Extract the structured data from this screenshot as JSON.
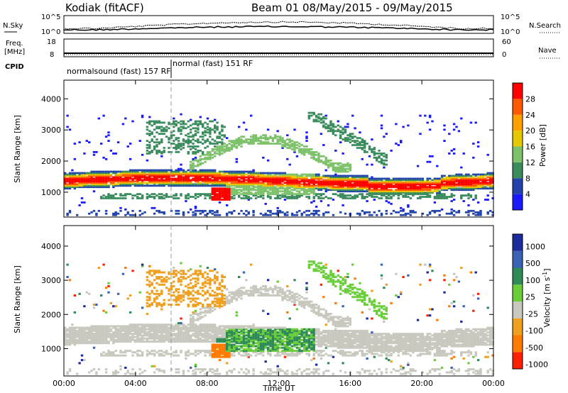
{
  "header": {
    "station": "Kodiak (fitACF)",
    "beam_info": "Beam 01  08/May/2015 - 09/May/2015"
  },
  "panels": {
    "nsky": {
      "label": "N.Sky",
      "right_label": "N.Search",
      "ticks_left": [
        "10^5",
        "10^0"
      ],
      "ticks_right": [
        "10^5",
        "10^0"
      ]
    },
    "freq": {
      "label": "Freq.",
      "unit": "[MHz]",
      "ticks_left": [
        "18",
        "8"
      ],
      "right_label": "Nave",
      "ticks_right": [
        "60",
        "0"
      ]
    },
    "cpid": {
      "label": "CPID",
      "mode1": "normalsound (fast) 157 RF",
      "mode2": "normal (fast) 151 RF"
    }
  },
  "colors": {
    "power_scale": [
      "#1a1aff",
      "#2244aa",
      "#3a8c5c",
      "#7dc26a",
      "#e6c800",
      "#ffa000",
      "#ff5a00",
      "#ff0000"
    ],
    "velocity_scale": [
      "#1b2a9c",
      "#3a62b5",
      "#2e8b57",
      "#6acd3a",
      "#c8c8be",
      "#f0a020",
      "#ff7a00",
      "#ff2000"
    ]
  },
  "chart_data": [
    {
      "type": "heatmap",
      "title": "",
      "xlabel": "",
      "ylabel": "Slant Range [km]",
      "x_ticks": [
        "00:00",
        "04:00",
        "08:00",
        "12:00",
        "16:00",
        "20:00",
        "00:00"
      ],
      "y_ticks": [
        "1000",
        "2000",
        "3000",
        "4000"
      ],
      "ylim": [
        200,
        4600
      ],
      "colorbar": {
        "label": "Power [dB]",
        "ticks": [
          "4",
          "8",
          "12",
          "16",
          "20",
          "24",
          "28"
        ]
      },
      "dominant_bands": [
        {
          "name": "",
          "time_range_h": [
            0,
            24
          ],
          "range_km": [
            1100,
            1600
          ],
          "value": 24
        },
        {
          "name": "",
          "time_range_h": [
            8.3,
            9.3
          ],
          "range_km": [
            700,
            1100
          ],
          "value": 28
        }
      ]
    },
    {
      "type": "heatmap",
      "title": "",
      "xlabel": "Time UT",
      "ylabel": "Slant Range [km]",
      "x_ticks": [
        "00:00",
        "04:00",
        "08:00",
        "12:00",
        "16:00",
        "20:00",
        "00:00"
      ],
      "y_ticks": [
        "1000",
        "2000",
        "3000",
        "4000"
      ],
      "ylim": [
        200,
        4600
      ],
      "colorbar": {
        "label": "Velocity [m s^-1]",
        "ticks": [
          "1000",
          "500",
          "100",
          "25",
          "-25",
          "-100",
          "-500",
          "-1000"
        ]
      }
    }
  ]
}
